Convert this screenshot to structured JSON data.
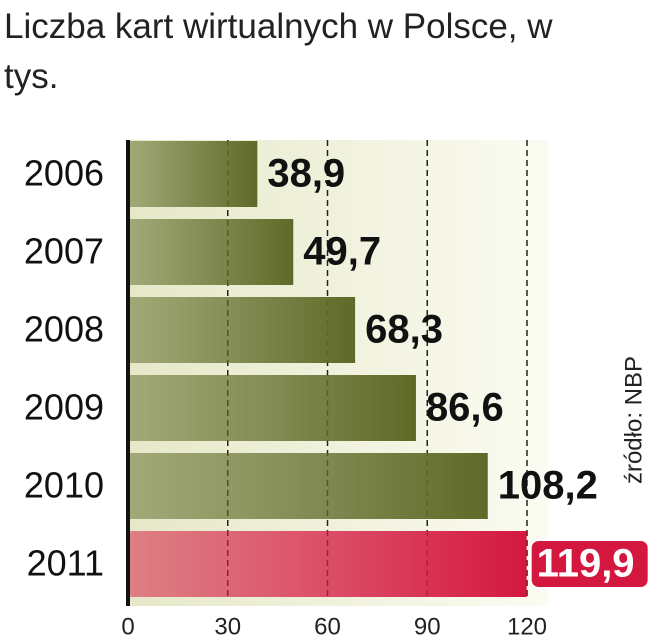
{
  "chart_data": {
    "type": "hbar",
    "title": "Liczba kart wirtualnych w Polsce, w tys.",
    "source": "źródło: NBP",
    "categories": [
      "2006",
      "2007",
      "2008",
      "2009",
      "2010",
      "2011"
    ],
    "values": [
      38.9,
      49.7,
      68.3,
      86.6,
      108.2,
      119.9
    ],
    "value_labels": [
      "38,9",
      "49,7",
      "68,3",
      "86,6",
      "108,2",
      "119,9"
    ],
    "colors": [
      "#5e6a27",
      "#5e6a27",
      "#5e6a27",
      "#5e6a27",
      "#5e6a27",
      "#d4173f"
    ],
    "highlight_index": 5,
    "xlim": [
      0,
      120
    ],
    "xticks": [
      0,
      30,
      60,
      90,
      120
    ],
    "grid": true
  }
}
